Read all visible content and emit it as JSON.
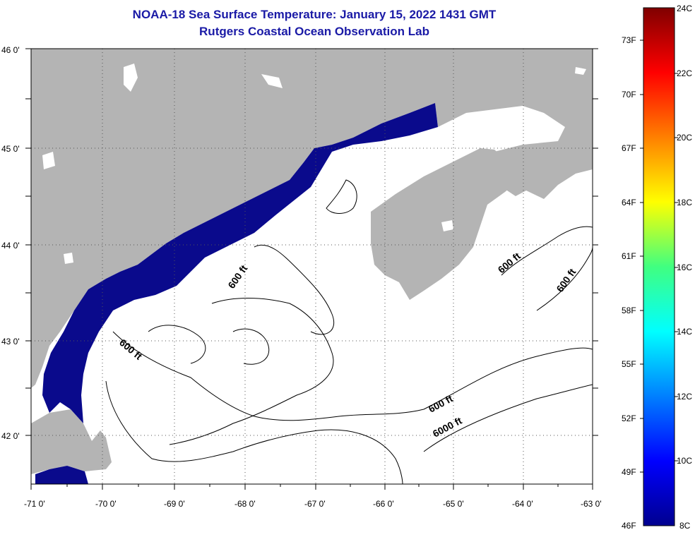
{
  "title": {
    "line1": "NOAA-18 Sea Surface Temperature:  January 15, 2022 1431 GMT",
    "line2": "Rutgers Coastal Ocean Observation Lab"
  },
  "map": {
    "lat_labels": [
      "46 0'",
      "45 0'",
      "44 0'",
      "43 0'",
      "42 0'"
    ],
    "lon_labels": [
      "-71 0'",
      "-70 0'",
      "-69 0'",
      "-68 0'",
      "-67 0'",
      "-66 0'",
      "-65 0'",
      "-64 0'",
      "-63 0'"
    ],
    "contour_labels": [
      "600 ft",
      "600 ft",
      "600 ft",
      "600 ft",
      "600 ft",
      "6000 ft"
    ],
    "colors": {
      "land": "#b4b4b4",
      "water_sst": "#0a0a8c",
      "cloud": "#ffffff",
      "grid": "#555555"
    }
  },
  "colorbar": {
    "fahrenheit": [
      "73F",
      "70F",
      "67F",
      "64F",
      "61F",
      "58F",
      "55F",
      "52F",
      "49F",
      "46F"
    ],
    "celsius": [
      "24C",
      "22C",
      "20C",
      "18C",
      "16C",
      "14C",
      "12C",
      "10C",
      "8C"
    ]
  }
}
